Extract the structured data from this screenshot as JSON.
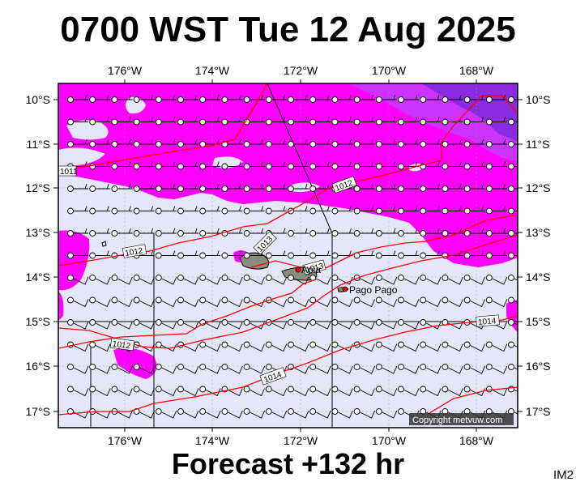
{
  "title": "0700 WST Tue 12 Aug 2025",
  "footer": "Forecast +132 hr",
  "image_code": "IM2",
  "copyright": "Copyright metvuw.com",
  "lon_labels": [
    "176°W",
    "174°W",
    "172°W",
    "170°W",
    "168°W"
  ],
  "lat_labels": [
    "10°S",
    "11°S",
    "12°S",
    "13°S",
    "14°S",
    "15°S",
    "16°S",
    "17°S"
  ],
  "isobar_labels": [
    "1011",
    "1012",
    "1012",
    "1013",
    "1013",
    "1012",
    "1014",
    "1014"
  ],
  "places": [
    "Apia",
    "Pago Pago"
  ],
  "colors": {
    "background_fill": "#e6e6fa",
    "rain_light": "#cc33ff",
    "rain_medium": "#ff00ff",
    "rain_heavy": "#8a2be2",
    "isobar": "#ff0000",
    "land": "#8c8c7c"
  }
}
